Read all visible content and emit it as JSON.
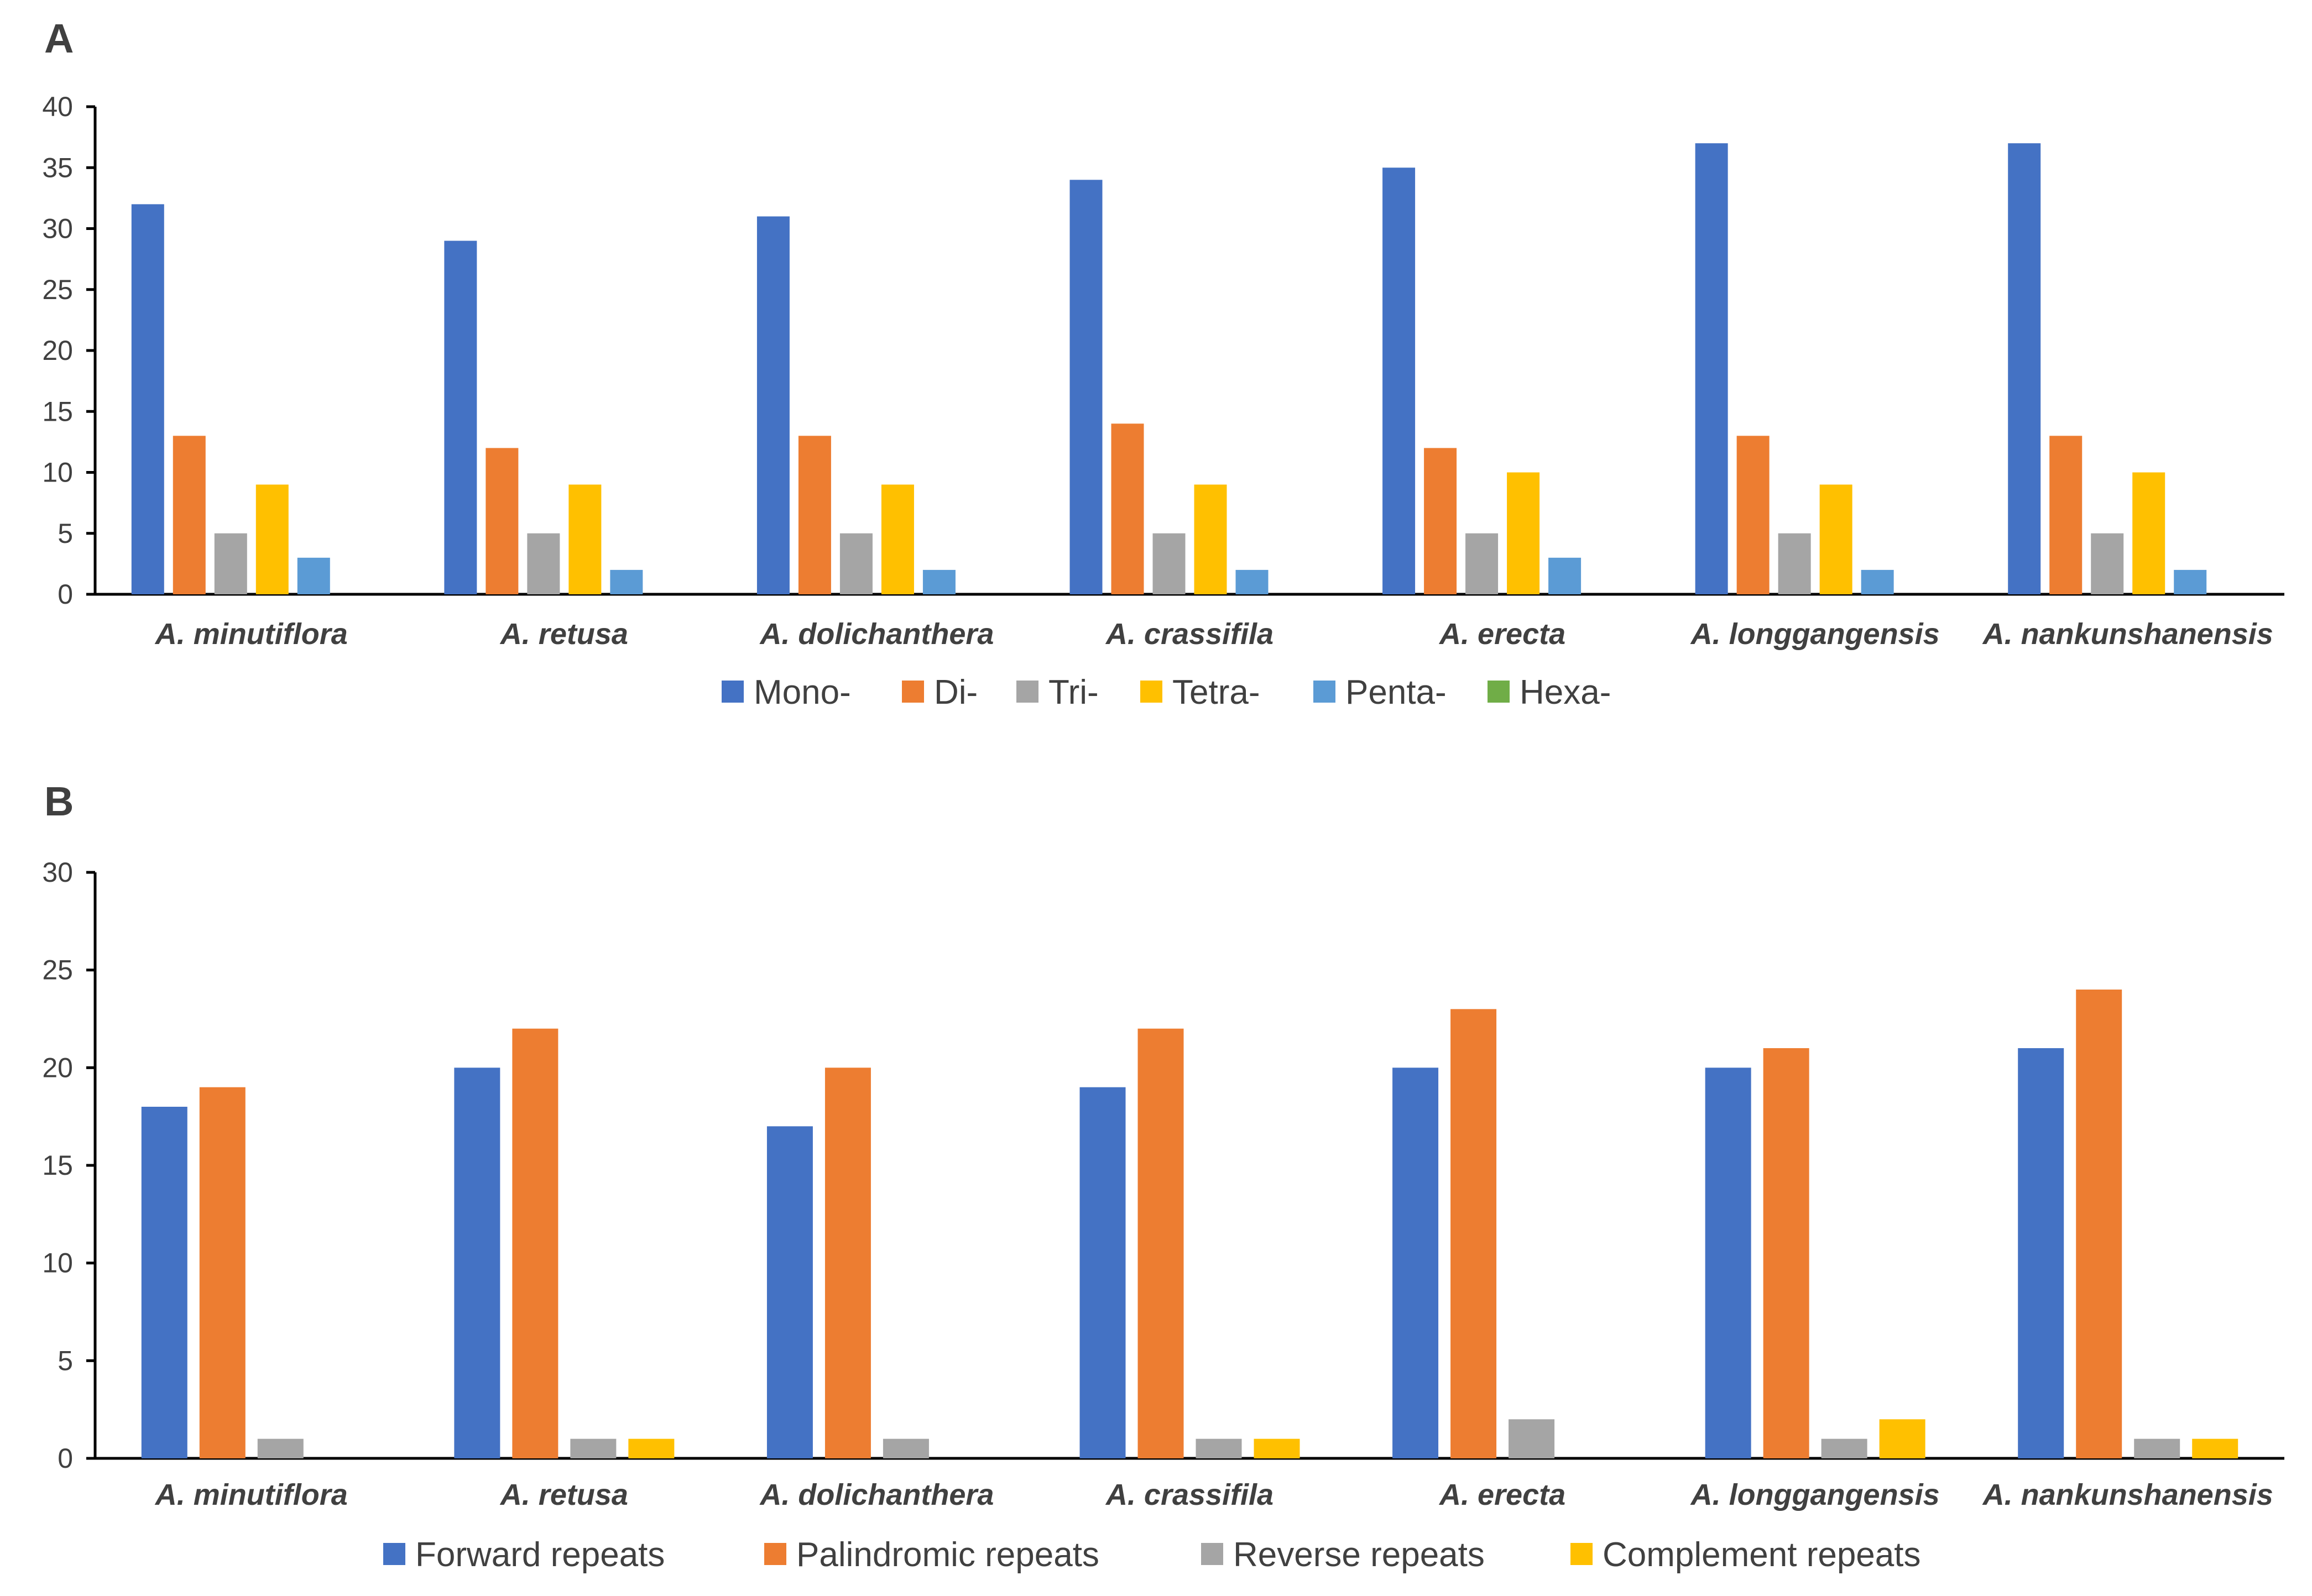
{
  "chart_data": [
    {
      "panel": "A",
      "type": "bar",
      "title": "",
      "xlabel": "",
      "ylabel": "",
      "ylim": [
        0,
        40
      ],
      "yticks": [
        0,
        5,
        10,
        15,
        20,
        25,
        30,
        35,
        40
      ],
      "grid": false,
      "legend_position": "bottom",
      "categories": [
        "A. minutiflora",
        "A. retusa",
        "A. dolichanthera",
        "A. crassifila",
        "A. erecta",
        "A. longgangensis",
        "A. nankunshanensis"
      ],
      "series": [
        {
          "name": "Mono-",
          "color": "#4472C4",
          "values": [
            32,
            29,
            31,
            34,
            35,
            37,
            37
          ]
        },
        {
          "name": "Di-",
          "color": "#ED7D31",
          "values": [
            13,
            12,
            13,
            14,
            12,
            13,
            13
          ]
        },
        {
          "name": "Tri-",
          "color": "#A5A5A5",
          "values": [
            5,
            5,
            5,
            5,
            5,
            5,
            5
          ]
        },
        {
          "name": "Tetra-",
          "color": "#FFC000",
          "values": [
            9,
            9,
            9,
            9,
            10,
            9,
            10
          ]
        },
        {
          "name": "Penta-",
          "color": "#5B9BD5",
          "values": [
            3,
            2,
            2,
            2,
            3,
            2,
            2
          ]
        },
        {
          "name": "Hexa-",
          "color": "#70AD47",
          "values": [
            0,
            0,
            0,
            0,
            0,
            0,
            0
          ]
        }
      ]
    },
    {
      "panel": "B",
      "type": "bar",
      "title": "",
      "xlabel": "",
      "ylabel": "",
      "ylim": [
        0,
        30
      ],
      "yticks": [
        0,
        5,
        10,
        15,
        20,
        25,
        30
      ],
      "grid": false,
      "legend_position": "bottom",
      "categories": [
        "A. minutiflora",
        "A. retusa",
        "A. dolichanthera",
        "A. crassifila",
        "A. erecta",
        "A. longgangensis",
        "A. nankunshanensis"
      ],
      "series": [
        {
          "name": "Forward repeats",
          "color": "#4472C4",
          "values": [
            18,
            20,
            17,
            19,
            20,
            20,
            21
          ]
        },
        {
          "name": "Palindromic repeats",
          "color": "#ED7D31",
          "values": [
            19,
            22,
            20,
            22,
            23,
            21,
            24
          ]
        },
        {
          "name": "Reverse repeats",
          "color": "#A5A5A5",
          "values": [
            1,
            1,
            1,
            1,
            2,
            1,
            1
          ]
        },
        {
          "name": "Complement repeats",
          "color": "#FFC000",
          "values": [
            0,
            1,
            0,
            1,
            0,
            2,
            1
          ]
        }
      ]
    }
  ]
}
